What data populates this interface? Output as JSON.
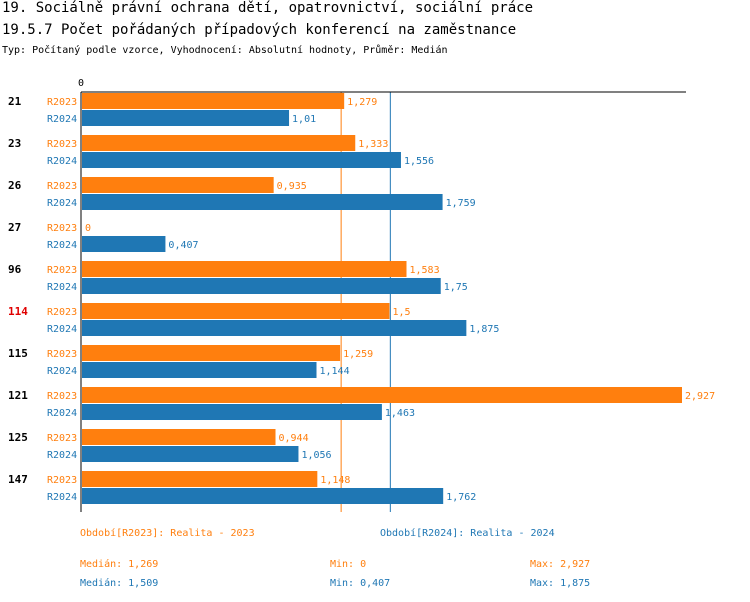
{
  "header": {
    "title1": "19. Sociálně právní ochrana dětí, opatrovnictví, sociální práce",
    "title2": "19.5.7 Počet pořádaných případových konferencí na zaměstnance",
    "subtitle": "Typ: Počítaný podle vzorce, Vyhodnocení: Absolutní hodnoty, Průměr: Medián"
  },
  "chart_data": {
    "type": "bar",
    "orientation": "horizontal",
    "axis_zero_label": "0",
    "xlim": [
      0,
      2.927
    ],
    "categories": [
      "21",
      "23",
      "26",
      "27",
      "96",
      "114",
      "115",
      "121",
      "125",
      "147"
    ],
    "highlight_category": "114",
    "series": [
      {
        "name": "R2023",
        "color": "#ff7f0e",
        "values": [
          1.279,
          1.333,
          0.935,
          0,
          1.583,
          1.5,
          1.259,
          2.927,
          0.944,
          1.148
        ],
        "labels": [
          "1,279",
          "1,333",
          "0,935",
          "0",
          "1,583",
          "1,5",
          "1,259",
          "2,927",
          "0,944",
          "1,148"
        ]
      },
      {
        "name": "R2024",
        "color": "#1f77b4",
        "values": [
          1.01,
          1.556,
          1.759,
          0.407,
          1.75,
          1.875,
          1.144,
          1.463,
          1.056,
          1.762
        ],
        "labels": [
          "1,01",
          "1,556",
          "1,759",
          "0,407",
          "1,75",
          "1,875",
          "1,144",
          "1,463",
          "1,056",
          "1,762"
        ]
      }
    ],
    "median_lines": [
      1.269,
      1.509
    ]
  },
  "footer": {
    "legend": {
      "r2023": "Období[R2023]: Realita - 2023",
      "r2024": "Období[R2024]: Realita - 2024"
    },
    "stats2023": {
      "median": "Medián: 1,269",
      "min": "Min: 0",
      "max": "Max: 2,927"
    },
    "stats2024": {
      "median": "Medián: 1,509",
      "min": "Min: 0,407",
      "max": "Max: 1,875"
    }
  },
  "colors": {
    "orange": "#ff7f0e",
    "blue": "#1f77b4",
    "highlight": "#e00000"
  }
}
